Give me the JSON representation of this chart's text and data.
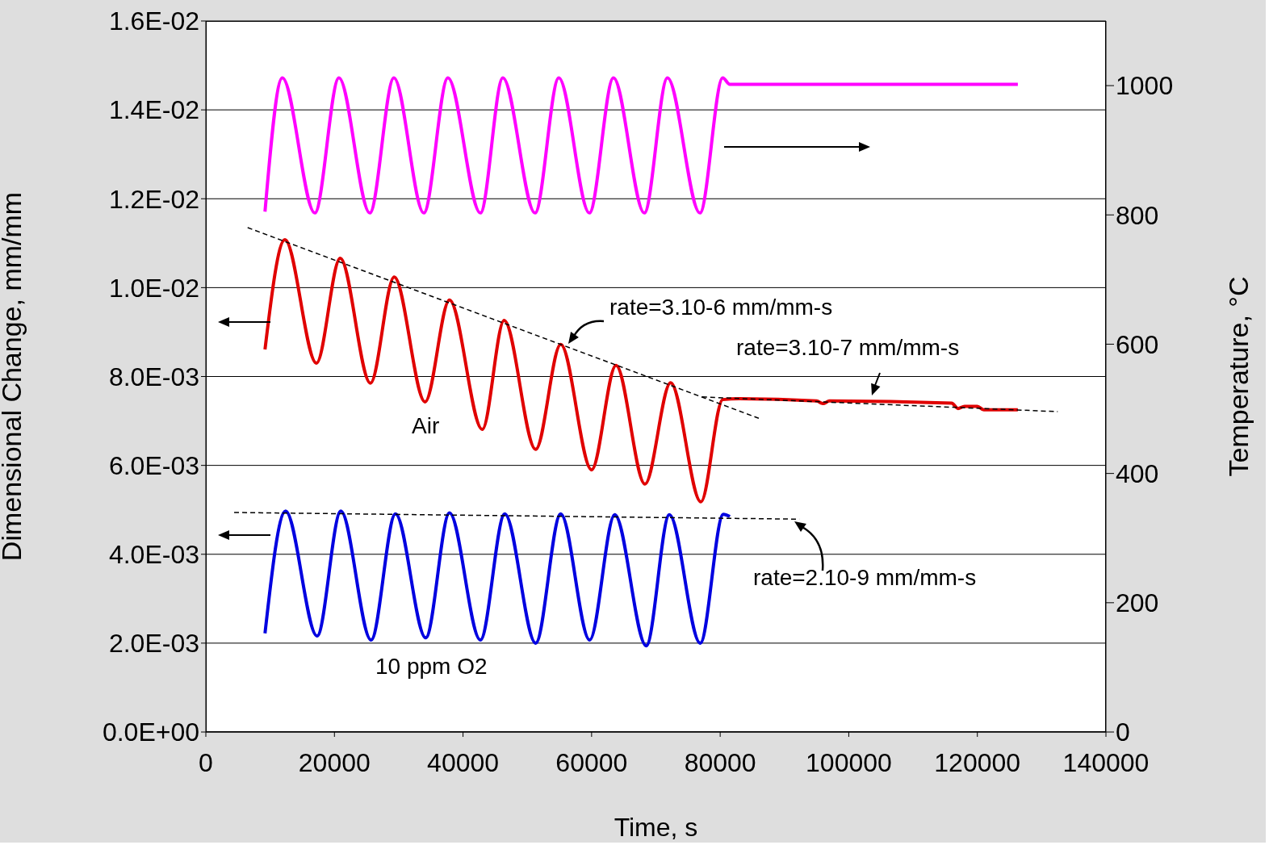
{
  "chart_data": {
    "type": "line",
    "xlabel": "Time, s",
    "ylabel": "Dimensional Change, mm/mm",
    "y2label": "Temperature, °C",
    "xlim": [
      0,
      140000
    ],
    "xticks": [
      0,
      20000,
      40000,
      60000,
      80000,
      100000,
      120000,
      140000
    ],
    "ylim": [
      0,
      0.016
    ],
    "yticks": [
      {
        "value": 0,
        "label": "0.0E+00"
      },
      {
        "value": 0.002,
        "label": "2.0E-03"
      },
      {
        "value": 0.004,
        "label": "4.0E-03"
      },
      {
        "value": 0.006,
        "label": "6.0E-03"
      },
      {
        "value": 0.008,
        "label": "8.0E-03"
      },
      {
        "value": 0.01,
        "label": "1.0E-02"
      },
      {
        "value": 0.012,
        "label": "1.2E-02"
      },
      {
        "value": 0.014,
        "label": "1.4E-02"
      },
      {
        "value": 0.016,
        "label": "1.6E-02"
      }
    ],
    "y2lim": [
      0,
      1100
    ],
    "y2ticks": [
      0,
      200,
      400,
      600,
      800,
      1000
    ],
    "grid": "y",
    "marker": "none",
    "line_style": "solid",
    "series": [
      {
        "color": "#ff00ff",
        "axis": "y2",
        "x": [
          9200,
          11900,
          16950,
          20700,
          25500,
          29250,
          33900,
          37650,
          42700,
          46200,
          51200,
          54900,
          59650,
          63400,
          68200,
          71800,
          76850,
          80400,
          81500,
          126300
        ],
        "values": [
          805,
          1012,
          803,
          1012,
          803,
          1012,
          803,
          1012,
          803,
          1012,
          803,
          1012,
          803,
          1012,
          803,
          1012,
          803,
          1012,
          1002,
          1002
        ]
      },
      {
        "color": "#e00000",
        "x": [
          9200,
          12300,
          17200,
          20900,
          25600,
          29300,
          34100,
          37900,
          43000,
          46400,
          51300,
          55200,
          60000,
          63800,
          68300,
          72300,
          77000,
          80400,
          83000,
          95000,
          96000,
          97000,
          116000,
          117000,
          118000,
          120000,
          121000,
          126300
        ],
        "values": [
          0.00861,
          0.01108,
          0.0083,
          0.01066,
          0.00785,
          0.01024,
          0.00743,
          0.00972,
          0.00681,
          0.00926,
          0.00636,
          0.00872,
          0.0059,
          0.00825,
          0.00558,
          0.00786,
          0.00518,
          0.00748,
          0.0075,
          0.00745,
          0.00739,
          0.00745,
          0.0074,
          0.00728,
          0.00733,
          0.00733,
          0.00725,
          0.00725
        ]
      },
      {
        "color": "#0000e0",
        "x": [
          9200,
          12400,
          17300,
          21000,
          25700,
          29500,
          34200,
          37900,
          42700,
          46500,
          51300,
          55200,
          59700,
          63600,
          68500,
          72100,
          76900,
          80500,
          81500
        ],
        "values": [
          0.00222,
          0.00497,
          0.00216,
          0.00497,
          0.00207,
          0.00491,
          0.00212,
          0.00493,
          0.00207,
          0.00491,
          0.002,
          0.00491,
          0.00207,
          0.00489,
          0.00194,
          0.00489,
          0.002,
          0.0049,
          0.00485
        ]
      },
      {
        "color": "#000000",
        "line_style": "dashed",
        "x": [
          6500,
          86000
        ],
        "values": [
          0.01135,
          0.00706
        ]
      },
      {
        "color": "#000000",
        "line_style": "dashed",
        "x": [
          77200,
          132500
        ],
        "values": [
          0.00754,
          0.00721
        ]
      },
      {
        "color": "#000000",
        "line_style": "dashed",
        "x": [
          4400,
          92300
        ],
        "values": [
          0.00494,
          0.00479
        ]
      }
    ],
    "annotations": [
      "rate=3.10-6 mm/mm-s",
      "rate=3.10-7 mm/mm-s",
      "rate=2.10-9 mm/mm-s",
      "Air",
      "10 ppm O2"
    ]
  }
}
